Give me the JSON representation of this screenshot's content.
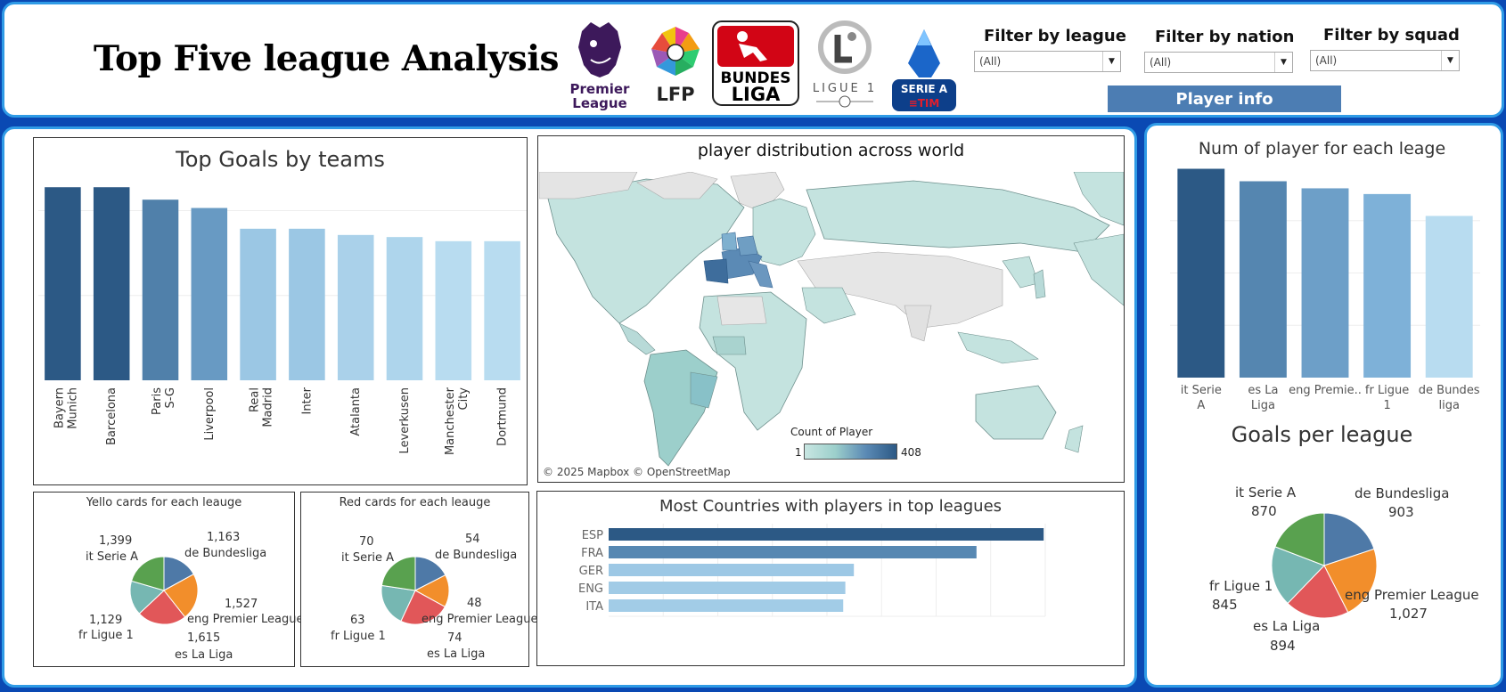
{
  "header": {
    "title": "Top Five league Analysis",
    "logos": [
      {
        "name": "premier-league-logo",
        "text": "Premier League",
        "color": "#3d195b"
      },
      {
        "name": "lfp-logo",
        "text": "LFP",
        "color": "#222222"
      },
      {
        "name": "bundesliga-logo",
        "text": "BUNDES LIGA",
        "color": "#d20515"
      },
      {
        "name": "ligue1-logo",
        "text": "LIGUE 1",
        "color": "#6b6b6b"
      },
      {
        "name": "serie-a-logo",
        "text": "SERIE A TIM",
        "color": "#1b66c9"
      }
    ],
    "filters": [
      {
        "label": "Filter by league",
        "value": "(All)"
      },
      {
        "label": "Filter by nation",
        "value": "(All)"
      },
      {
        "label": "Filter by squad",
        "value": "(All)"
      }
    ],
    "player_info_button": "Player info"
  },
  "colors": {
    "background": "#0a49b3",
    "panel_border": "#2f9be6",
    "dark_blue": "#2c5985",
    "mid_blue": "#4c7db3",
    "light_blue": "#b8dcf0",
    "pie_blue": "#4e79a7",
    "pie_orange": "#f28e2b",
    "pie_red": "#e15759",
    "pie_teal": "#76b7b2",
    "pie_green": "#59a14f"
  },
  "map": {
    "title": "player distribution across world",
    "legend_title": "Count of Player",
    "legend_min": "1",
    "legend_max": "408",
    "attribution": "© 2025 Mapbox © OpenStreetMap"
  },
  "chart_data": [
    {
      "type": "bar",
      "title": "Top Goals by teams",
      "categories": [
        "Bayern Munich",
        "Barcelona",
        "Paris S-G",
        "Liverpool",
        "Real Madrid",
        "Inter",
        "Atalanta",
        "Leverkusen",
        "Manchester City",
        "Dortmund"
      ],
      "values": [
        93,
        93,
        87,
        83,
        73,
        73,
        70,
        69,
        67,
        67
      ],
      "ylim": [
        0,
        100
      ]
    },
    {
      "type": "pie",
      "title": "Yello cards for each leauge",
      "slices": [
        {
          "label": "de Bundesliga",
          "value": 1163,
          "display": "1,163"
        },
        {
          "label": "eng Premier League",
          "value": 1527,
          "display": "1,527"
        },
        {
          "label": "es La Liga",
          "value": 1615,
          "display": "1,615"
        },
        {
          "label": "fr Ligue 1",
          "value": 1129,
          "display": "1,129"
        },
        {
          "label": "it Serie A",
          "value": 1399,
          "display": "1,399"
        }
      ]
    },
    {
      "type": "pie",
      "title": "Red cards for each leauge",
      "slices": [
        {
          "label": "de Bundesliga",
          "value": 54,
          "display": "54"
        },
        {
          "label": "eng Premier League",
          "value": 48,
          "display": "48"
        },
        {
          "label": "es La Liga",
          "value": 74,
          "display": "74"
        },
        {
          "label": "fr Ligue 1",
          "value": 63,
          "display": "63"
        },
        {
          "label": "it Serie A",
          "value": 70,
          "display": "70"
        }
      ]
    },
    {
      "type": "bar",
      "title": "Most Countries with players in top leagues",
      "orientation": "horizontal",
      "categories": [
        "ESP",
        "FRA",
        "GER",
        "ENG",
        "ITA"
      ],
      "values": [
        408,
        345,
        230,
        222,
        220
      ],
      "xlim": [
        0,
        430
      ]
    },
    {
      "type": "bar",
      "title": "Num of player for each leage",
      "categories": [
        "it Serie A",
        "es La Liga",
        "eng Premie..",
        "fr Ligue 1",
        "de Bundes liga"
      ],
      "values": [
        620,
        583,
        562,
        545,
        480
      ],
      "ylim": [
        0,
        640
      ]
    },
    {
      "type": "pie",
      "title": "Goals per league",
      "slices": [
        {
          "label": "de Bundesliga",
          "value": 903,
          "display": "903"
        },
        {
          "label": "eng Premier League",
          "value": 1027,
          "display": "1,027"
        },
        {
          "label": "es La Liga",
          "value": 894,
          "display": "894"
        },
        {
          "label": "fr Ligue 1",
          "value": 845,
          "display": "845"
        },
        {
          "label": "it Serie A",
          "value": 870,
          "display": "870"
        }
      ]
    }
  ]
}
